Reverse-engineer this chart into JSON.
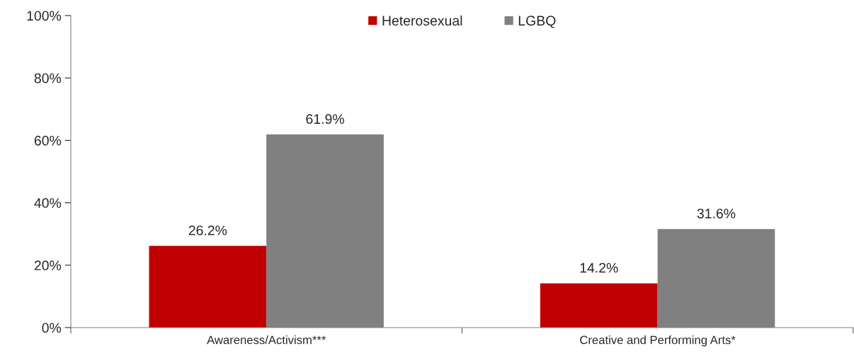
{
  "chart_data": {
    "type": "bar",
    "categories": [
      "Awareness/Activism***",
      "Creative and Performing Arts*"
    ],
    "series": [
      {
        "name": "Heterosexual",
        "color": "#c00000",
        "values": [
          26.2,
          14.2
        ],
        "value_labels": [
          "26.2%",
          "14.2%"
        ]
      },
      {
        "name": "LGBQ",
        "color": "#808080",
        "values": [
          61.9,
          31.6
        ],
        "value_labels": [
          "61.9%",
          "31.6%"
        ]
      }
    ],
    "ylim": [
      0,
      100
    ],
    "yticks": [
      {
        "value": 0,
        "label": "0%"
      },
      {
        "value": 20,
        "label": "20%"
      },
      {
        "value": 40,
        "label": "40%"
      },
      {
        "value": 60,
        "label": "60%"
      },
      {
        "value": 80,
        "label": "80%"
      },
      {
        "value": 100,
        "label": "100%"
      }
    ],
    "grid": false,
    "legend": "top"
  }
}
